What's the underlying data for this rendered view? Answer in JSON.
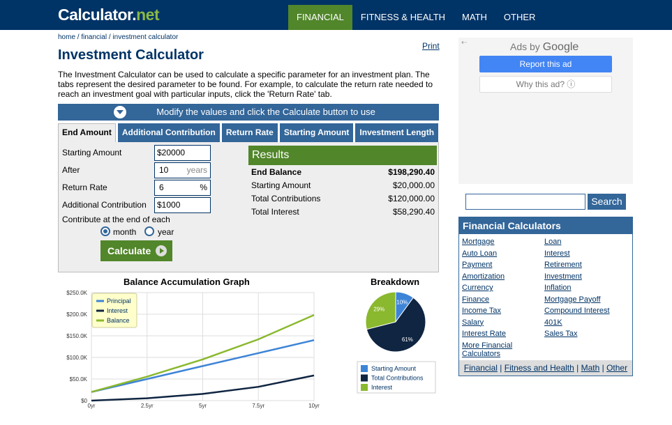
{
  "header": {
    "logo_main": "Calculator",
    "logo_dot": ".",
    "logo_net": "net",
    "nav": [
      "FINANCIAL",
      "FITNESS & HEALTH",
      "MATH",
      "OTHER"
    ]
  },
  "breadcrumb": {
    "home": "home",
    "sep": " / ",
    "financial": "financial",
    "current": "investment calculator"
  },
  "print_label": "Print",
  "page_title": "Investment Calculator",
  "intro": "The Investment Calculator can be used to calculate a specific parameter for an investment plan. The tabs represent the desired parameter to be found. For example, to calculate the return rate needed to reach an investment goal with particular inputs, click the 'Return Rate' tab.",
  "instruction_bar": "Modify the values and click the Calculate button to use",
  "tabs": [
    "End Amount",
    "Additional Contribution",
    "Return Rate",
    "Starting Amount",
    "Investment Length"
  ],
  "form": {
    "starting_amount": {
      "label": "Starting Amount",
      "value": "$20000"
    },
    "after": {
      "label": "After",
      "value": "10",
      "unit": "years"
    },
    "return_rate": {
      "label": "Return Rate",
      "value": "6",
      "unit": "%"
    },
    "additional_contribution": {
      "label": "Additional Contribution",
      "value": "$1000"
    },
    "contribute_label": "Contribute at the end of each",
    "option_month": "month",
    "option_year": "year",
    "selected": "month",
    "calculate_label": "Calculate"
  },
  "results": {
    "heading": "Results",
    "rows": [
      {
        "label": "End Balance",
        "value": "$198,290.40"
      },
      {
        "label": "Starting Amount",
        "value": "$20,000.00"
      },
      {
        "label": "Total Contributions",
        "value": "$120,000.00"
      },
      {
        "label": "Total Interest",
        "value": "$58,290.40"
      }
    ]
  },
  "graph_title": "Balance Accumulation Graph",
  "breakdown_title": "Breakdown",
  "chart_data": [
    {
      "type": "line",
      "title": "Balance Accumulation Graph",
      "x": [
        0,
        2.5,
        5,
        7.5,
        10
      ],
      "x_tick_labels": [
        "0yr",
        "2.5yr",
        "5yr",
        "7.5yr",
        "10yr"
      ],
      "y_tick_labels": [
        "$0",
        "$50.0K",
        "$100.0K",
        "$150.0K",
        "$200.0K",
        "$250.0K"
      ],
      "ylim": [
        0,
        250000
      ],
      "xlim": [
        0,
        10
      ],
      "grid": true,
      "legend_position": "top-left",
      "series": [
        {
          "name": "Principal",
          "color": "#3e84d6",
          "values": [
            20000,
            50000,
            80000,
            110000,
            140000
          ]
        },
        {
          "name": "Interest",
          "color": "#0f2541",
          "values": [
            0,
            5500,
            15500,
            32000,
            58290
          ]
        },
        {
          "name": "Balance",
          "color": "#8ab82e",
          "values": [
            20000,
            55500,
            95500,
            142000,
            198290
          ]
        }
      ]
    },
    {
      "type": "pie",
      "title": "Breakdown",
      "legend_position": "bottom",
      "slices": [
        {
          "name": "Starting Amount",
          "value": 10,
          "label": "10%",
          "color": "#3e84d6"
        },
        {
          "name": "Total Contributions",
          "value": 61,
          "label": "61%",
          "color": "#0f2541"
        },
        {
          "name": "Interest",
          "value": 29,
          "label": "29%",
          "color": "#8ab82e"
        }
      ]
    }
  ],
  "ads": {
    "back": "⇠",
    "ads_by": "Ads by",
    "google": "Google",
    "report": "Report this ad",
    "why": "Why this ad? ⓘ"
  },
  "search": {
    "button": "Search"
  },
  "financial_calculators": {
    "heading": "Financial Calculators",
    "left": [
      "Mortgage",
      "Auto Loan",
      "Payment",
      "Amortization",
      "Currency",
      "Finance",
      "Income Tax",
      "Salary",
      "Interest Rate",
      "More Financial Calculators"
    ],
    "right": [
      "Loan",
      "Interest",
      "Retirement",
      "Investment",
      "Inflation",
      "Mortgage Payoff",
      "Compound Interest",
      "401K",
      "Sales Tax"
    ],
    "footer": [
      "Financial",
      "Fitness and Health",
      "Math",
      "Other"
    ]
  }
}
